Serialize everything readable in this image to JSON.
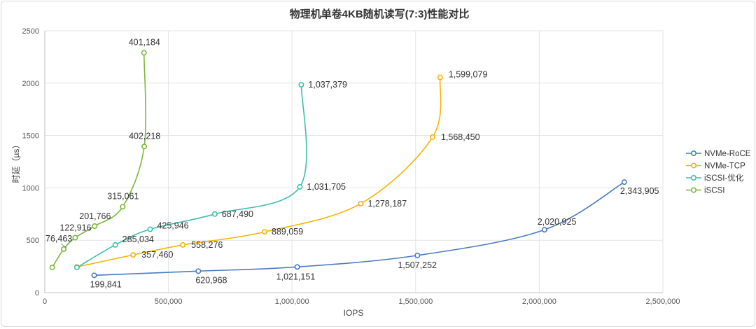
{
  "chart_data": {
    "type": "line",
    "title": "物理机单卷4KB随机读写(7:3)性能对比",
    "xlabel": "IOPS",
    "ylabel": "时延（µs）",
    "xlim": [
      0,
      2500000
    ],
    "ylim": [
      0,
      2500
    ],
    "x_ticks": [
      0,
      500000,
      1000000,
      1500000,
      2000000,
      2500000
    ],
    "x_tick_labels": [
      "0",
      "500,000",
      "1,000,000",
      "1,500,000",
      "2,000,000",
      "2,500,000"
    ],
    "y_ticks": [
      0,
      500,
      1000,
      1500,
      2000,
      2500
    ],
    "y_tick_labels": [
      "0",
      "500",
      "1000",
      "1500",
      "2000",
      "2500"
    ],
    "grid": true,
    "legend_position": "right",
    "series": [
      {
        "name": "NVMe-RoCE",
        "color": "#4a7cc0",
        "points": [
          [
            199841,
            165
          ],
          [
            620968,
            205
          ],
          [
            1021151,
            245
          ],
          [
            1507252,
            355
          ],
          [
            2020925,
            600
          ],
          [
            2343905,
            1055
          ]
        ],
        "labels": [
          "199,841",
          "620,968",
          "1,021,151",
          "1,507,252",
          "2,020,925",
          "2,343,905"
        ]
      },
      {
        "name": "NVMe-TCP",
        "color": "#f5b400",
        "points": [
          [
            130000,
            245
          ],
          [
            357460,
            360
          ],
          [
            558276,
            455
          ],
          [
            889059,
            580
          ],
          [
            1278187,
            850
          ],
          [
            1568450,
            1485
          ],
          [
            1599079,
            2055
          ]
        ],
        "labels": [
          "",
          "357,460",
          "558,276",
          "889,059",
          "1,278,187",
          "1,568,450",
          "1,599,079"
        ]
      },
      {
        "name": "iSCSI-优化",
        "color": "#3cbfae",
        "points": [
          [
            130000,
            240
          ],
          [
            285034,
            455
          ],
          [
            425946,
            605
          ],
          [
            687490,
            750
          ],
          [
            1031705,
            1010
          ],
          [
            1037379,
            1985
          ]
        ],
        "labels": [
          "",
          "285,034",
          "425,946",
          "687,490",
          "1,031,705",
          "1,037,379"
        ]
      },
      {
        "name": "iSCSI",
        "color": "#7ab83a",
        "points": [
          [
            30000,
            240
          ],
          [
            76463,
            415
          ],
          [
            122916,
            525
          ],
          [
            201766,
            635
          ],
          [
            315061,
            820
          ],
          [
            402218,
            1395
          ],
          [
            401184,
            2290
          ]
        ],
        "labels": [
          "",
          "76,463",
          "122,916",
          "201,766",
          "315,061",
          "402,218",
          "401,184"
        ]
      }
    ]
  }
}
